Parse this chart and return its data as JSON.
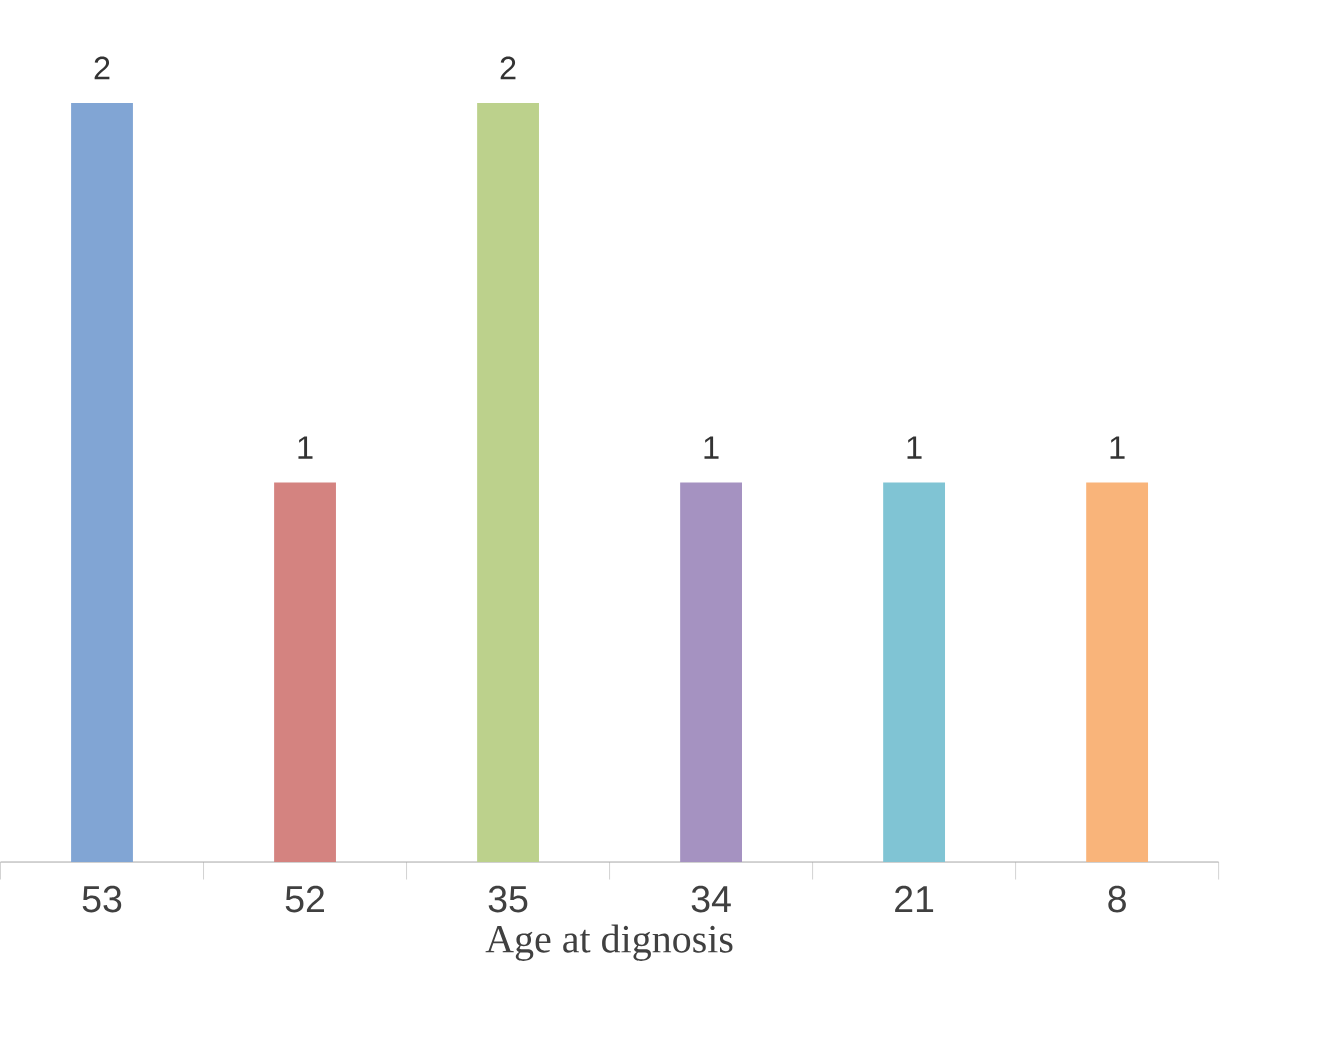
{
  "chart_data": {
    "type": "bar",
    "xlabel": "Age at dignosis",
    "categories": [
      "53",
      "52",
      "35",
      "34",
      "21",
      "8"
    ],
    "values": [
      2,
      1,
      2,
      1,
      1,
      1
    ],
    "colors": [
      "#81a5d4",
      "#d48380",
      "#bcd18c",
      "#a592c1",
      "#80c4d4",
      "#f9b47a"
    ],
    "data_labels": true
  }
}
